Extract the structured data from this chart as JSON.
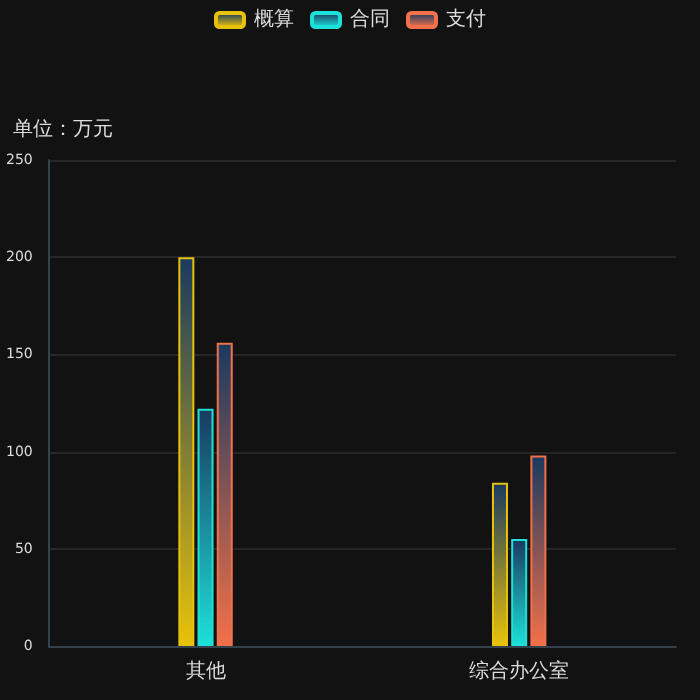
{
  "chart_data": {
    "type": "bar",
    "ylabel": "单位：万元",
    "categories": [
      "其他",
      "综合办公室"
    ],
    "series": [
      {
        "name": "概算",
        "color": "#e8c20a",
        "values": [
          200,
          84
        ]
      },
      {
        "name": "合同",
        "color": "#1de0d8",
        "values": [
          122,
          55
        ]
      },
      {
        "name": "支付",
        "color": "#f2704a",
        "values": [
          156,
          98
        ]
      }
    ],
    "ylim": [
      0,
      250
    ],
    "yticks": [
      0,
      50,
      100,
      150,
      200,
      250
    ],
    "grid": "y",
    "legend": "top"
  }
}
